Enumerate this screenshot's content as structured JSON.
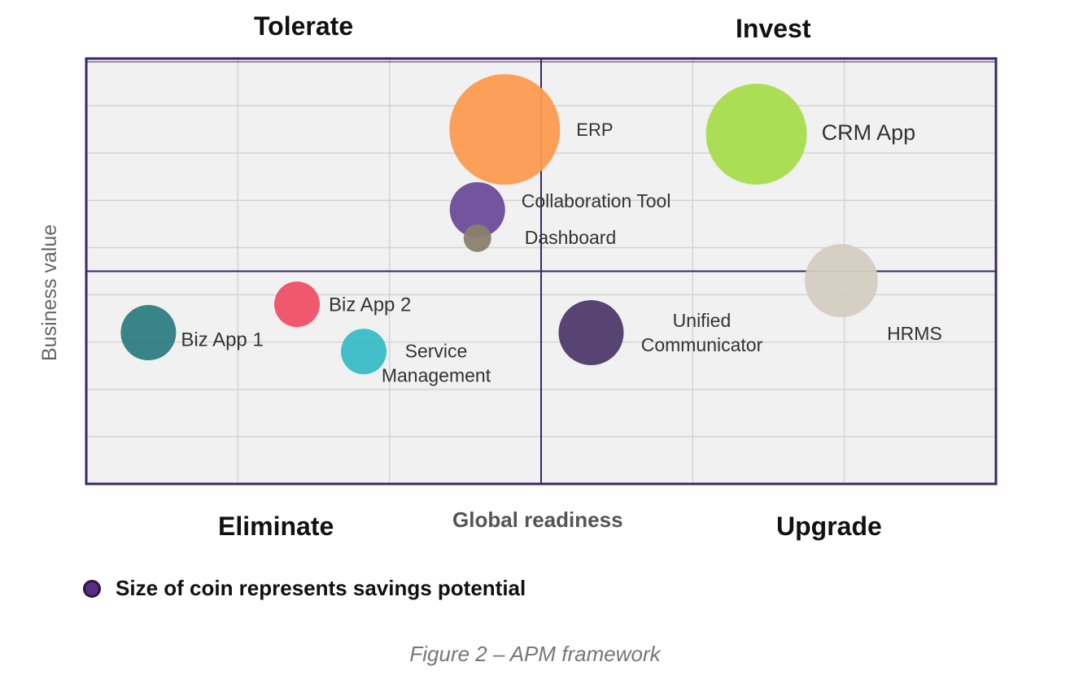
{
  "quadrants": {
    "top_left": "Tolerate",
    "top_right": "Invest",
    "bottom_left": "Eliminate",
    "bottom_right": "Upgrade"
  },
  "legend": {
    "text": "Size of coin represents savings potential",
    "color": "#5a2d82"
  },
  "caption": "Figure 2 – APM framework",
  "chart_data": {
    "type": "scatter",
    "xlabel": "Global readiness",
    "ylabel": "Business value",
    "xlim": [
      0,
      6
    ],
    "ylim": [
      0,
      9
    ],
    "grid": true,
    "divider": {
      "x": 3,
      "y": 4.5
    },
    "points": [
      {
        "label": "ERP",
        "x": 2.76,
        "y": 7.5,
        "size": 68,
        "color": "#fc9a50"
      },
      {
        "label": "CRM App",
        "x": 4.42,
        "y": 7.4,
        "size": 62,
        "color": "#a8dc4c"
      },
      {
        "label": "Collaboration Tool",
        "x": 2.58,
        "y": 5.8,
        "size": 34,
        "color": "#6c4c9a"
      },
      {
        "label": "Dashboard",
        "x": 2.58,
        "y": 5.2,
        "size": 17,
        "color": "#8a7f6e"
      },
      {
        "label": "HRMS",
        "x": 4.98,
        "y": 4.3,
        "size": 45,
        "color": "#d4ccc0"
      },
      {
        "label": "Biz App 2",
        "x": 1.39,
        "y": 3.8,
        "size": 28,
        "color": "#ef4f67"
      },
      {
        "label": "Biz App 1",
        "x": 0.41,
        "y": 3.2,
        "size": 34,
        "color": "#2e7d80"
      },
      {
        "label": "Service Management",
        "x": 1.83,
        "y": 2.8,
        "size": 28,
        "color": "#38bcc6"
      },
      {
        "label": "Unified Communicator",
        "x": 3.33,
        "y": 3.2,
        "size": 40,
        "color": "#4e3a6a"
      }
    ]
  }
}
